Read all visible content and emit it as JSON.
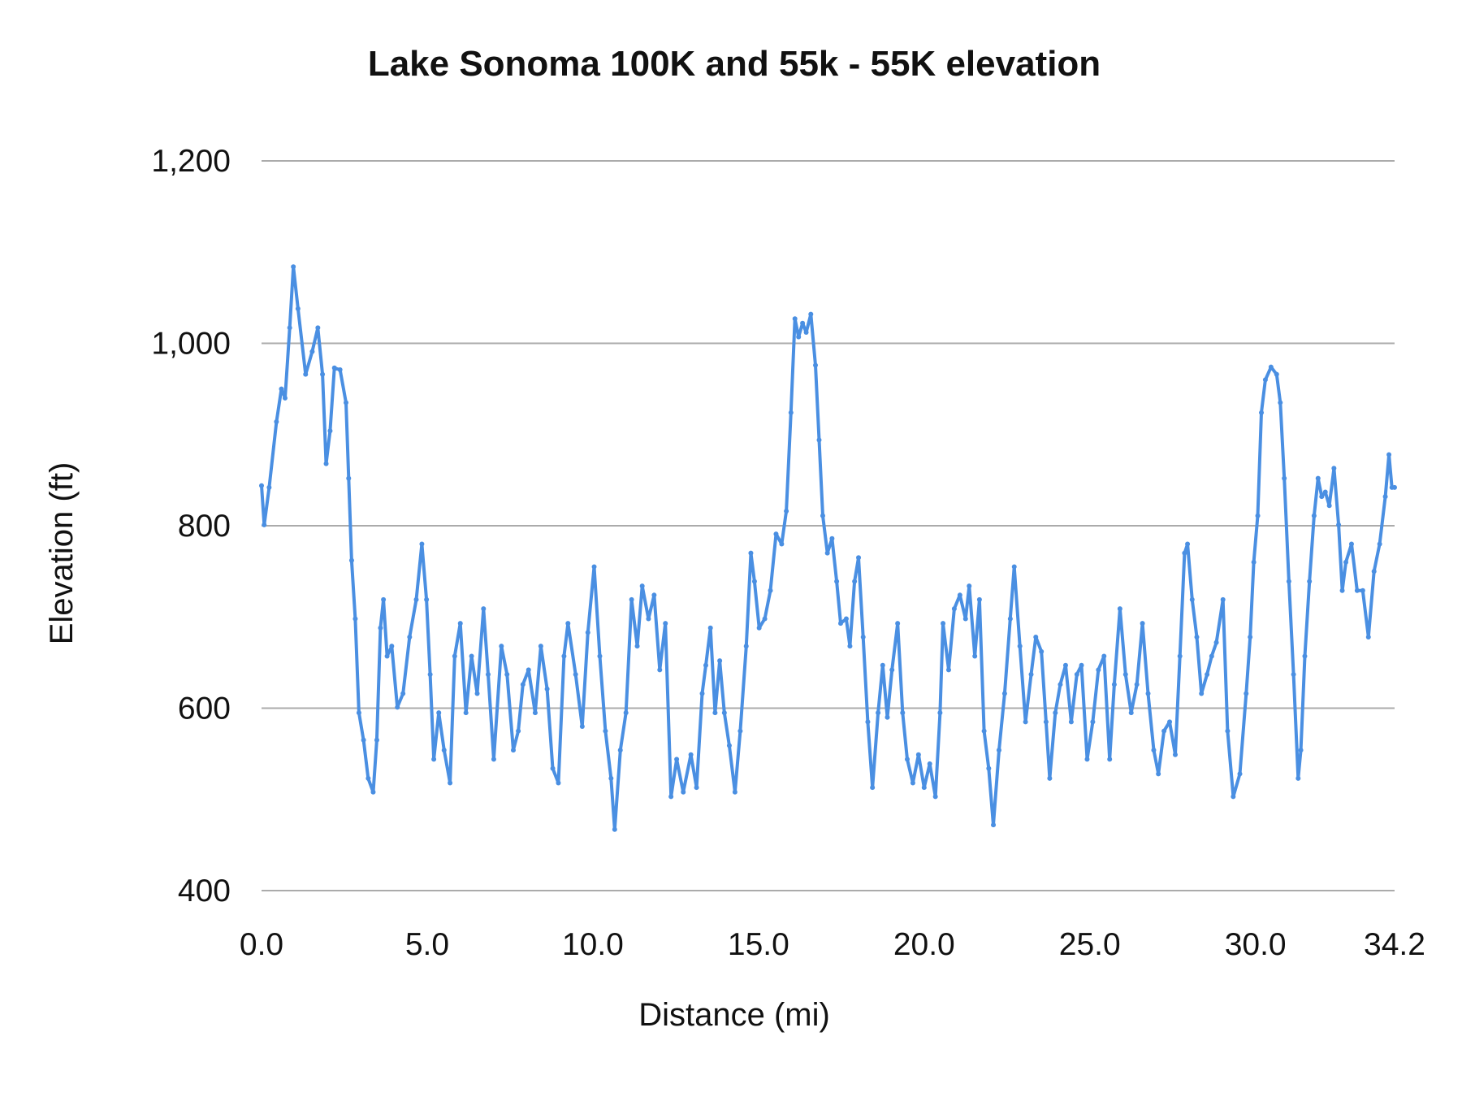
{
  "chart_data": {
    "type": "line",
    "title": "Lake Sonoma 100K and 55k - 55K elevation",
    "xlabel": "Distance (mi)",
    "ylabel": "Elevation (ft)",
    "xlim": [
      0,
      34.2
    ],
    "ylim": [
      400,
      1200
    ],
    "x_ticks": [
      "0.0",
      "5.0",
      "10.0",
      "15.0",
      "20.0",
      "25.0",
      "30.0",
      "34.2"
    ],
    "x_tick_values": [
      0,
      5,
      10,
      15,
      20,
      25,
      30,
      34.2
    ],
    "y_ticks": [
      "400",
      "600",
      "800",
      "1,000",
      "1,200"
    ],
    "y_tick_values": [
      400,
      600,
      800,
      1000,
      1200
    ],
    "grid": "horizontal",
    "legend": "none",
    "line_color": "#4a8fe2",
    "x": [
      0,
      0.08,
      0.23,
      0.45,
      0.6,
      0.71,
      0.85,
      0.96,
      1.1,
      1.33,
      1.53,
      1.7,
      1.84,
      1.95,
      2.07,
      2.2,
      2.37,
      2.55,
      2.63,
      2.72,
      2.83,
      2.94,
      3.08,
      3.22,
      3.37,
      3.48,
      3.59,
      3.68,
      3.79,
      3.93,
      4.1,
      4.27,
      4.47,
      4.67,
      4.84,
      4.98,
      5.09,
      5.2,
      5.35,
      5.51,
      5.69,
      5.83,
      6.0,
      6.17,
      6.34,
      6.51,
      6.7,
      6.84,
      7.01,
      7.24,
      7.41,
      7.6,
      7.75,
      7.89,
      8.06,
      8.26,
      8.43,
      8.62,
      8.79,
      8.96,
      9.13,
      9.25,
      9.48,
      9.68,
      9.85,
      10.04,
      10.21,
      10.38,
      10.55,
      10.66,
      10.83,
      11.0,
      11.17,
      11.34,
      11.49,
      11.68,
      11.85,
      12.02,
      12.19,
      12.36,
      12.53,
      12.73,
      12.96,
      13.13,
      13.3,
      13.41,
      13.55,
      13.69,
      13.83,
      13.97,
      14.12,
      14.29,
      14.45,
      14.63,
      14.77,
      14.88,
      15.02,
      15.19,
      15.36,
      15.53,
      15.7,
      15.84,
      15.98,
      16.1,
      16.21,
      16.33,
      16.44,
      16.58,
      16.72,
      16.83,
      16.94,
      17.08,
      17.22,
      17.36,
      17.48,
      17.65,
      17.76,
      17.9,
      18.02,
      18.16,
      18.3,
      18.44,
      18.61,
      18.75,
      18.89,
      19.03,
      19.2,
      19.35,
      19.49,
      19.66,
      19.83,
      20.0,
      20.17,
      20.34,
      20.48,
      20.57,
      20.74,
      20.91,
      21.08,
      21.25,
      21.36,
      21.53,
      21.67,
      21.81,
      21.95,
      22.09,
      22.26,
      22.43,
      22.6,
      22.72,
      22.89,
      23.06,
      23.23,
      23.37,
      23.54,
      23.68,
      23.79,
      23.96,
      24.11,
      24.27,
      24.44,
      24.61,
      24.75,
      24.92,
      25.09,
      25.26,
      25.43,
      25.6,
      25.74,
      25.91,
      26.08,
      26.25,
      26.42,
      26.59,
      26.76,
      26.93,
      27.07,
      27.24,
      27.41,
      27.58,
      27.72,
      27.86,
      27.95,
      28.09,
      28.23,
      28.37,
      28.54,
      28.68,
      28.82,
      29.02,
      29.16,
      29.33,
      29.53,
      29.72,
      29.84,
      29.95,
      30.07,
      30.18,
      30.3,
      30.47,
      30.64,
      30.75,
      30.87,
      31.01,
      31.15,
      31.29,
      31.37,
      31.49,
      31.63,
      31.77,
      31.89,
      32.0,
      32.11,
      32.23,
      32.37,
      32.51,
      32.62,
      32.73,
      32.9,
      33.07,
      33.24,
      33.41,
      33.58,
      33.75,
      33.92,
      34.03,
      34.12,
      34.2
    ],
    "y": [
      844,
      801,
      842,
      914,
      950,
      940,
      1017,
      1084,
      1038,
      966,
      991,
      1017,
      966,
      868,
      904,
      973,
      971,
      935,
      852,
      762,
      698,
      595,
      565,
      523,
      508,
      565,
      688,
      719,
      657,
      668,
      601,
      616,
      678,
      719,
      780,
      719,
      637,
      544,
      595,
      554,
      518,
      657,
      693,
      595,
      657,
      616,
      709,
      637,
      544,
      668,
      637,
      554,
      575,
      626,
      642,
      595,
      668,
      621,
      534,
      518,
      657,
      693,
      637,
      580,
      683,
      755,
      657,
      575,
      523,
      467,
      554,
      595,
      719,
      668,
      734,
      698,
      724,
      642,
      693,
      503,
      544,
      508,
      549,
      513,
      616,
      647,
      688,
      595,
      652,
      595,
      559,
      508,
      575,
      668,
      770,
      739,
      688,
      698,
      729,
      791,
      780,
      816,
      924,
      1027,
      1007,
      1022,
      1012,
      1032,
      976,
      894,
      811,
      770,
      786,
      739,
      693,
      698,
      668,
      739,
      765,
      678,
      585,
      513,
      595,
      647,
      590,
      642,
      693,
      595,
      544,
      518,
      549,
      513,
      539,
      503,
      595,
      693,
      642,
      709,
      724,
      698,
      734,
      657,
      719,
      575,
      534,
      472,
      554,
      616,
      698,
      755,
      668,
      585,
      637,
      678,
      662,
      585,
      523,
      595,
      626,
      647,
      585,
      637,
      647,
      544,
      585,
      642,
      657,
      544,
      626,
      709,
      637,
      595,
      626,
      693,
      616,
      554,
      528,
      575,
      585,
      549,
      657,
      770,
      780,
      719,
      678,
      616,
      637,
      657,
      672,
      719,
      575,
      503,
      528,
      616,
      678,
      760,
      811,
      924,
      960,
      974,
      966,
      935,
      852,
      739,
      637,
      523,
      554,
      657,
      739,
      811,
      852,
      832,
      837,
      822,
      863,
      801,
      729,
      760,
      780,
      729,
      729,
      678,
      750,
      780,
      832,
      878,
      842,
      842
    ]
  }
}
